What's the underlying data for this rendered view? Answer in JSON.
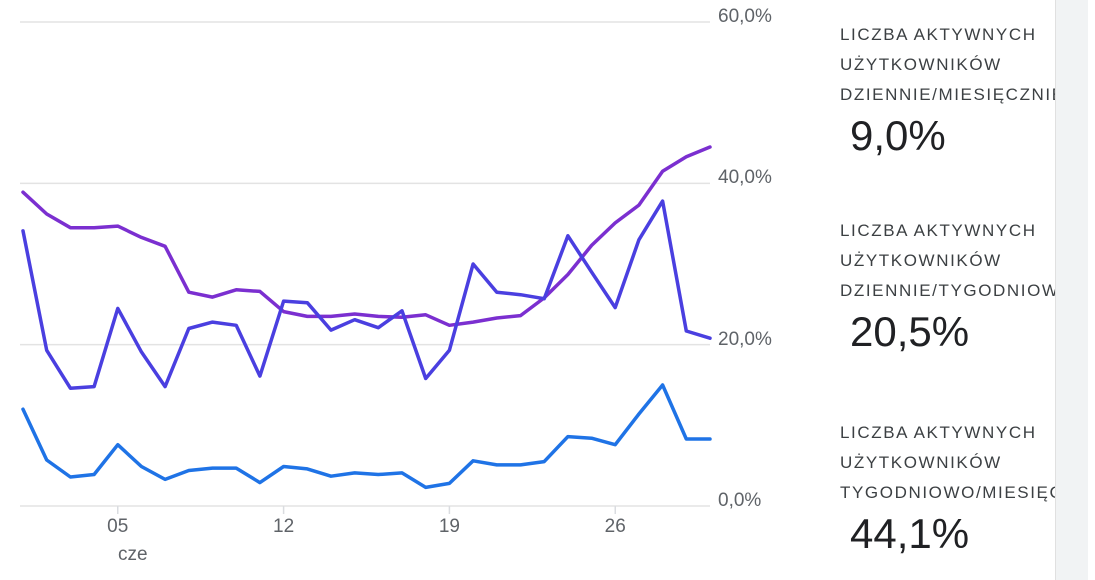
{
  "chart_data": {
    "type": "line",
    "y_axis": {
      "position": "right",
      "ylim": [
        0,
        60
      ],
      "ticks": [
        {
          "value": 60,
          "label": "60,0%"
        },
        {
          "value": 40,
          "label": "40,0%"
        },
        {
          "value": 20,
          "label": "20,0%"
        },
        {
          "value": 0,
          "label": "0,0%"
        }
      ]
    },
    "x_axis": {
      "days": [
        1,
        2,
        3,
        4,
        5,
        6,
        7,
        8,
        9,
        10,
        11,
        12,
        13,
        14,
        15,
        16,
        17,
        18,
        19,
        20,
        21,
        22,
        23,
        24,
        25,
        26,
        27,
        28,
        29,
        30
      ],
      "ticks": [
        {
          "day": 5,
          "label": "05"
        },
        {
          "day": 12,
          "label": "12"
        },
        {
          "day": 19,
          "label": "19"
        },
        {
          "day": 26,
          "label": "26"
        }
      ],
      "month_label": "cze"
    },
    "grid": true,
    "series": [
      {
        "color": "#7b2fd0",
        "values": [
          38.9,
          36.2,
          34.5,
          34.5,
          34.7,
          33.3,
          32.2,
          26.5,
          25.9,
          26.8,
          26.6,
          24.1,
          23.5,
          23.5,
          23.8,
          23.5,
          23.4,
          23.7,
          22.4,
          22.8,
          23.3,
          23.6,
          25.8,
          28.7,
          32.3,
          35.1,
          37.3,
          41.5,
          43.3,
          44.5
        ]
      },
      {
        "color": "#4a3fe0",
        "values": [
          34.1,
          19.3,
          14.6,
          14.8,
          24.5,
          19.1,
          14.8,
          22.0,
          22.8,
          22.4,
          16.1,
          25.4,
          25.2,
          21.8,
          23.1,
          22.1,
          24.2,
          15.8,
          19.3,
          30.0,
          26.5,
          26.2,
          25.7,
          33.5,
          29.0,
          24.6,
          33.0,
          37.8,
          21.7,
          20.8
        ]
      },
      {
        "color": "#1f73e6",
        "values": [
          12.0,
          5.7,
          3.6,
          3.9,
          7.6,
          4.9,
          3.3,
          4.4,
          4.7,
          4.7,
          2.9,
          4.9,
          4.6,
          3.7,
          4.1,
          3.9,
          4.1,
          2.3,
          2.8,
          5.6,
          5.1,
          5.1,
          5.5,
          8.6,
          8.4,
          7.6,
          11.4,
          15.0,
          8.3,
          8.3
        ]
      }
    ]
  },
  "legend": [
    {
      "label": "LICZBA AKTYWNYCH\nUŻYTKOWNIKÓW\nDZIENNIE/MIESIĘCZNIE",
      "value": "9,0%"
    },
    {
      "label": "LICZBA AKTYWNYCH\nUŻYTKOWNIKÓW\nDZIENNIE/TYGODNIOWO",
      "value": "20,5%"
    },
    {
      "label": "LICZBA AKTYWNYCH\nUŻYTKOWNIKÓW\nTYGODNIOWO/MIESIĘCZNIE",
      "value": "44,1%"
    }
  ]
}
